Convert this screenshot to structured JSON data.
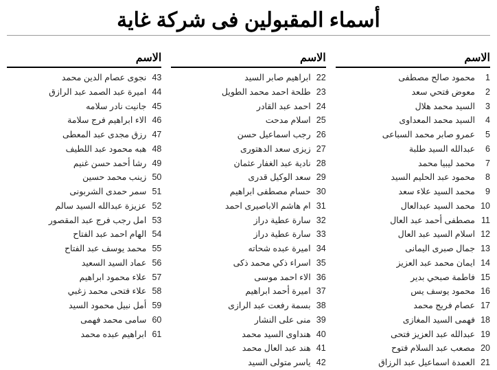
{
  "title": "أسماء المقبولين فى شركة غاية",
  "col_header": "الاسم",
  "columns": [
    {
      "start": 1,
      "names": [
        "محمود صالح مصطفى",
        "معوض فتحي سعد",
        "السيد محمد هلال",
        "السيد محمد المعداوى",
        "عمرو صابر محمد السباعى",
        "عبدالله السيد طلبة",
        "محمد  ليبيا محمد",
        "محمود عبد الحليم السيد",
        "محمد السيد علاء سعد",
        "محمد السيد عبدالعال",
        "مصطفى أحمد عبد العال",
        "اسلام السيد عبد العال",
        "جمال صبرى اليمانى",
        "ايمان محمد عبد العزيز",
        "فاطمة صبحي بدير",
        "محمود يوسف يس",
        "عصام فريج محمد",
        "فهمى السيد المغازى",
        "عبدالله عبد العزيز فتحى",
        "مصعب عبد السلام فتوح",
        "العمدة اسماعيل عبد الرزاق"
      ]
    },
    {
      "start": 22,
      "names": [
        "ابراهيم صابر السيد",
        "طلحة احمد محمد الطويل",
        "احمد عبد القادر",
        "اسلام مدحت",
        "رجب اسماعيل حسن",
        "زيزى سعد الدهتورى",
        "نادية عبد الغفار عثمان",
        "سعد الوكيل قدرى",
        "حسام مصطفى ابراهيم",
        "ام هاشم الاباصيرى احمد",
        "سارة عطية دراز",
        "سارة عطية دراز",
        "اميرة عبده شحاته",
        "اسراء ذكي محمد ذكى",
        "الاء احمد موسى",
        "اميرة أحمد ابراهيم",
        "بسمة رفعت عبد الرازى",
        "منى على النشار",
        "هنداوى السيد محمد",
        "هند عبد العال محمد",
        "ياسر متولى السيد"
      ]
    },
    {
      "start": 43,
      "names": [
        "نجوى عصام الدين محمد",
        "اميرة عبد الصمد عبد الرازق",
        "جانيت نادر سلامه",
        "الاء ابراهيم فرج سلامة",
        "رزق مجدى عبد المعطى",
        "هبه محمود عبد اللطيف",
        "رشا أحمد حسن غنيم",
        "زينب محمد حسين",
        "سمر حمدى الشربونى",
        "عزيزة عبدالله السيد سالم",
        "امل رجب فرج عبد المقصور",
        "الهام احمد عبد الفتاح",
        "محمد يوسف عبد الفتاح",
        "عماد السيد السعيد",
        "علاء محمود ابراهيم",
        "علاء فتحى محمد زغبي",
        "أمل نبيل محمود السيد",
        "سامى محمد فهمى",
        "ابراهيم عبده محمد"
      ]
    }
  ]
}
